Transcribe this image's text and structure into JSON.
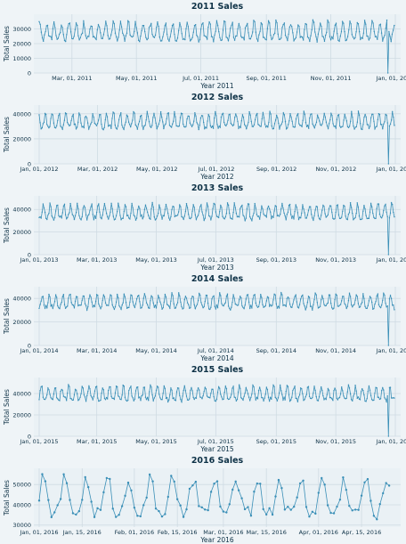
{
  "chart_data": [
    {
      "type": "line",
      "title": "2011 Sales",
      "xlabel": "Year 2011",
      "ylabel": "Total Sales",
      "x_start": "2011-01-29",
      "x_end": "2011-12-31",
      "xlim": [
        "2011-01-29",
        "2012-01-01"
      ],
      "yticks": [
        0,
        10000,
        20000,
        30000
      ],
      "ylim": [
        0,
        40000
      ],
      "xticks": [
        "Mar, 01, 2011",
        "May, 01, 2011",
        "Jul, 01, 2011",
        "Sep, 01, 2011",
        "Nov, 01, 2011",
        "Jan, 01, 2012"
      ],
      "weekly_peak": 34000,
      "weekly_low": 22000,
      "anomaly": {
        "date": "2011-12-25",
        "value": 0
      },
      "grid": true
    },
    {
      "type": "line",
      "title": "2012 Sales",
      "xlabel": "Year 2012",
      "ylabel": "Total Sales",
      "x_start": "2012-01-01",
      "x_end": "2012-12-31",
      "xlim": [
        "2012-01-01",
        "2013-01-01"
      ],
      "yticks": [
        0,
        20000,
        40000
      ],
      "ylim": [
        0,
        47000
      ],
      "xticks": [
        "Jan, 01, 2012",
        "Mar, 01, 2012",
        "May, 01, 2012",
        "Jul, 01, 2012",
        "Sep, 01, 2012",
        "Nov, 01, 2012",
        "Jan, 01, 2013"
      ],
      "weekly_peak": 40000,
      "weekly_low": 28000,
      "anomaly": {
        "date": "2012-12-25",
        "value": 0
      },
      "grid": true
    },
    {
      "type": "line",
      "title": "2013 Sales",
      "xlabel": "Year 2013",
      "ylabel": "Total Sales",
      "x_start": "2013-01-01",
      "x_end": "2013-12-31",
      "xlim": [
        "2013-01-01",
        "2014-01-01"
      ],
      "yticks": [
        0,
        20000,
        40000
      ],
      "ylim": [
        0,
        52000
      ],
      "xticks": [
        "Jan, 01, 2013",
        "Mar, 01, 2013",
        "May, 01, 2013",
        "Jul, 01, 2013",
        "Sep, 01, 2013",
        "Nov, 01, 2013",
        "Jan, 01, 2014"
      ],
      "weekly_peak": 44000,
      "weekly_low": 31000,
      "anomaly": {
        "date": "2013-12-25",
        "value": 0
      },
      "grid": true
    },
    {
      "type": "line",
      "title": "2014 Sales",
      "xlabel": "Year 2014",
      "ylabel": "Total Sales",
      "x_start": "2014-01-01",
      "x_end": "2014-12-31",
      "xlim": [
        "2014-01-01",
        "2015-01-01"
      ],
      "yticks": [
        0,
        20000,
        40000
      ],
      "ylim": [
        0,
        50000
      ],
      "xticks": [
        "Jan, 01, 2014",
        "Mar, 01, 2014",
        "May, 01, 2014",
        "Jul, 01, 2014",
        "Sep, 01, 2014",
        "Nov, 01, 2014",
        "Jan, 01, 2015"
      ],
      "weekly_peak": 43000,
      "weekly_low": 31000,
      "anomaly": {
        "date": "2014-12-25",
        "value": 0
      },
      "grid": true
    },
    {
      "type": "line",
      "title": "2015 Sales",
      "xlabel": "Year 2015",
      "ylabel": "Total Sales",
      "x_start": "2015-01-01",
      "x_end": "2015-12-31",
      "xlim": [
        "2015-01-01",
        "2016-01-01"
      ],
      "yticks": [
        0,
        20000,
        40000
      ],
      "ylim": [
        0,
        55000
      ],
      "xticks": [
        "Jan, 01, 2015",
        "Mar, 01, 2015",
        "May, 01, 2015",
        "Jul, 01, 2015",
        "Sep, 01, 2015",
        "Nov, 01, 2015",
        "Jan, 01, 2016"
      ],
      "weekly_peak": 46000,
      "weekly_low": 33000,
      "anomaly": {
        "date": "2015-12-25",
        "value": 0
      },
      "grid": true
    },
    {
      "type": "line",
      "title": "2016 Sales",
      "xlabel": "Year 2016",
      "ylabel": "Total Sales",
      "x_start": "2016-01-01",
      "x_end": "2016-04-24",
      "xlim": [
        "2016-01-01",
        "2016-04-26"
      ],
      "yticks": [
        30000,
        40000,
        50000
      ],
      "ylim": [
        29000,
        58000
      ],
      "xticks": [
        "Jan, 01, 2016",
        "Jan, 15, 2016",
        "Feb, 01, 2016",
        "Feb, 15, 2016",
        "Mar, 01, 2016",
        "Mar, 15, 2016",
        "Apr, 01, 2016",
        "Apr, 15, 2016"
      ],
      "weekly_peak": 52000,
      "weekly_low": 34000,
      "grid": true
    }
  ]
}
